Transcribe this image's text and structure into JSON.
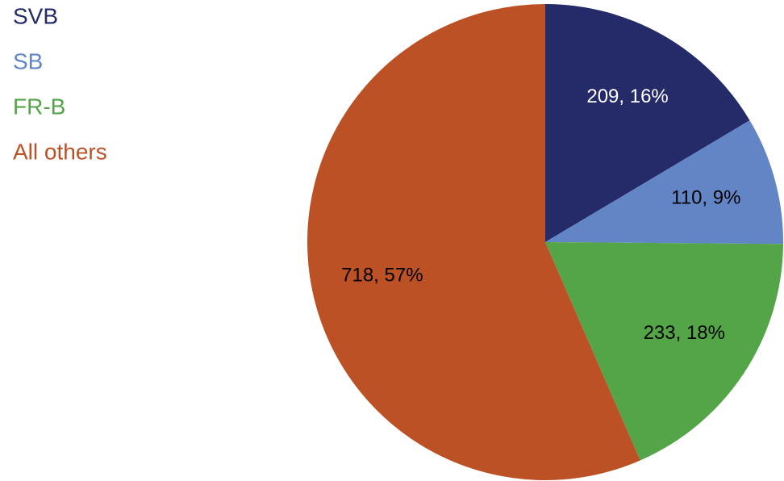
{
  "chart_data": {
    "type": "pie",
    "categories": [
      "SVB",
      "SB",
      "FR-B",
      "All others"
    ],
    "values": [
      209,
      110,
      233,
      718
    ],
    "value_labels": [
      "209, 16%",
      "110, 9%",
      "233, 18%",
      "718, 57%"
    ],
    "colors": [
      "#252a69",
      "#6285c6",
      "#53a548",
      "#bc5126"
    ],
    "legend": "top-left"
  }
}
